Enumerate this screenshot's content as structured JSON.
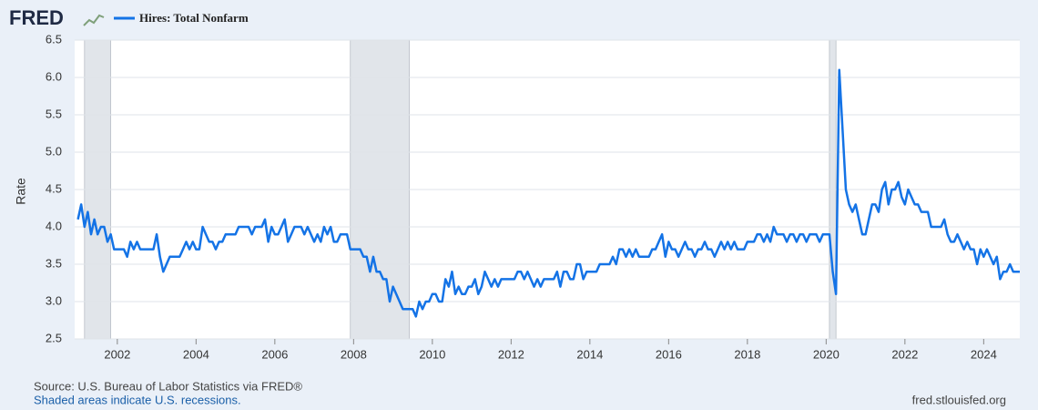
{
  "chart_data": {
    "type": "line",
    "logo": "FRED",
    "ylabel": "Rate",
    "source": "Source: U.S. Bureau of Labor Statistics via FRED®",
    "note": "Shaded areas indicate U.S. recessions.",
    "url": "fred.stlouisfed.org",
    "grid": true,
    "xlim": [
      2000.917,
      2024.917
    ],
    "ylim": [
      2.5,
      6.5
    ],
    "xticks": [
      2002,
      2004,
      2006,
      2008,
      2010,
      2012,
      2014,
      2016,
      2018,
      2020,
      2022,
      2024
    ],
    "yticks": [
      2.5,
      {
        "value": 3,
        "label": "3.0"
      },
      3.5,
      {
        "value": 4,
        "label": "4.0"
      },
      4.5,
      {
        "value": 5,
        "label": "5.0"
      },
      5.5,
      {
        "value": 6,
        "label": "6.0"
      },
      6.5
    ],
    "recessions": [
      [
        2001.167,
        2001.833
      ],
      [
        2007.917,
        2009.417
      ],
      [
        2020.083,
        2020.25
      ]
    ],
    "x": [
      2001,
      2001.083,
      2001.167,
      2001.25,
      2001.333,
      2001.417,
      2001.5,
      2001.583,
      2001.667,
      2001.75,
      2001.833,
      2001.917,
      2002,
      2002.083,
      2002.167,
      2002.25,
      2002.333,
      2002.417,
      2002.5,
      2002.583,
      2002.667,
      2002.75,
      2002.833,
      2002.917,
      2003,
      2003.083,
      2003.167,
      2003.25,
      2003.333,
      2003.417,
      2003.5,
      2003.583,
      2003.667,
      2003.75,
      2003.833,
      2003.917,
      2004,
      2004.083,
      2004.167,
      2004.25,
      2004.333,
      2004.417,
      2004.5,
      2004.583,
      2004.667,
      2004.75,
      2004.833,
      2004.917,
      2005,
      2005.083,
      2005.167,
      2005.25,
      2005.333,
      2005.417,
      2005.5,
      2005.583,
      2005.667,
      2005.75,
      2005.833,
      2005.917,
      2006,
      2006.083,
      2006.167,
      2006.25,
      2006.333,
      2006.417,
      2006.5,
      2006.583,
      2006.667,
      2006.75,
      2006.833,
      2006.917,
      2007,
      2007.083,
      2007.167,
      2007.25,
      2007.333,
      2007.417,
      2007.5,
      2007.583,
      2007.667,
      2007.75,
      2007.833,
      2007.917,
      2008,
      2008.083,
      2008.167,
      2008.25,
      2008.333,
      2008.417,
      2008.5,
      2008.583,
      2008.667,
      2008.75,
      2008.833,
      2008.917,
      2009,
      2009.083,
      2009.167,
      2009.25,
      2009.333,
      2009.417,
      2009.5,
      2009.583,
      2009.667,
      2009.75,
      2009.833,
      2009.917,
      2010,
      2010.083,
      2010.167,
      2010.25,
      2010.333,
      2010.417,
      2010.5,
      2010.583,
      2010.667,
      2010.75,
      2010.833,
      2010.917,
      2011,
      2011.083,
      2011.167,
      2011.25,
      2011.333,
      2011.417,
      2011.5,
      2011.583,
      2011.667,
      2011.75,
      2011.833,
      2011.917,
      2012,
      2012.083,
      2012.167,
      2012.25,
      2012.333,
      2012.417,
      2012.5,
      2012.583,
      2012.667,
      2012.75,
      2012.833,
      2012.917,
      2013,
      2013.083,
      2013.167,
      2013.25,
      2013.333,
      2013.417,
      2013.5,
      2013.583,
      2013.667,
      2013.75,
      2013.833,
      2013.917,
      2014,
      2014.083,
      2014.167,
      2014.25,
      2014.333,
      2014.417,
      2014.5,
      2014.583,
      2014.667,
      2014.75,
      2014.833,
      2014.917,
      2015,
      2015.083,
      2015.167,
      2015.25,
      2015.333,
      2015.417,
      2015.5,
      2015.583,
      2015.667,
      2015.75,
      2015.833,
      2015.917,
      2016,
      2016.083,
      2016.167,
      2016.25,
      2016.333,
      2016.417,
      2016.5,
      2016.583,
      2016.667,
      2016.75,
      2016.833,
      2016.917,
      2017,
      2017.083,
      2017.167,
      2017.25,
      2017.333,
      2017.417,
      2017.5,
      2017.583,
      2017.667,
      2017.75,
      2017.833,
      2017.917,
      2018,
      2018.083,
      2018.167,
      2018.25,
      2018.333,
      2018.417,
      2018.5,
      2018.583,
      2018.667,
      2018.75,
      2018.833,
      2018.917,
      2019,
      2019.083,
      2019.167,
      2019.25,
      2019.333,
      2019.417,
      2019.5,
      2019.583,
      2019.667,
      2019.75,
      2019.833,
      2019.917,
      2020,
      2020.083,
      2020.167,
      2020.25,
      2020.333,
      2020.417,
      2020.5,
      2020.583,
      2020.667,
      2020.75,
      2020.833,
      2020.917,
      2021,
      2021.083,
      2021.167,
      2021.25,
      2021.333,
      2021.417,
      2021.5,
      2021.583,
      2021.667,
      2021.75,
      2021.833,
      2021.917,
      2022,
      2022.083,
      2022.167,
      2022.25,
      2022.333,
      2022.417,
      2022.5,
      2022.583,
      2022.667,
      2022.75,
      2022.833,
      2022.917,
      2023,
      2023.083,
      2023.167,
      2023.25,
      2023.333,
      2023.417,
      2023.5,
      2023.583,
      2023.667,
      2023.75,
      2023.833,
      2023.917,
      2024,
      2024.083,
      2024.167,
      2024.25,
      2024.333,
      2024.417,
      2024.5,
      2024.583,
      2024.667,
      2024.75,
      2024.833,
      2024.917
    ],
    "series": [
      {
        "name": "Hires: Total Nonfarm",
        "color": "#1473e6",
        "values": [
          4.1,
          4.3,
          4.0,
          4.2,
          3.9,
          4.1,
          3.9,
          4.0,
          4.0,
          3.8,
          3.9,
          3.7,
          3.7,
          3.7,
          3.7,
          3.6,
          3.8,
          3.7,
          3.8,
          3.7,
          3.7,
          3.7,
          3.7,
          3.7,
          3.9,
          3.6,
          3.4,
          3.5,
          3.6,
          3.6,
          3.6,
          3.6,
          3.7,
          3.8,
          3.7,
          3.8,
          3.7,
          3.7,
          4.0,
          3.9,
          3.8,
          3.8,
          3.7,
          3.8,
          3.8,
          3.9,
          3.9,
          3.9,
          3.9,
          4.0,
          4.0,
          4.0,
          4.0,
          3.9,
          4.0,
          4.0,
          4.0,
          4.1,
          3.8,
          4.0,
          3.9,
          3.9,
          4.0,
          4.1,
          3.8,
          3.9,
          4.0,
          4.0,
          4.0,
          3.9,
          4.0,
          3.9,
          3.8,
          3.9,
          3.8,
          4.0,
          3.9,
          4.0,
          3.8,
          3.8,
          3.9,
          3.9,
          3.9,
          3.7,
          3.7,
          3.7,
          3.7,
          3.6,
          3.6,
          3.4,
          3.6,
          3.4,
          3.4,
          3.3,
          3.3,
          3.0,
          3.2,
          3.1,
          3.0,
          2.9,
          2.9,
          2.9,
          2.9,
          2.8,
          3.0,
          2.9,
          3.0,
          3.0,
          3.1,
          3.1,
          3.0,
          3.0,
          3.3,
          3.2,
          3.4,
          3.1,
          3.2,
          3.1,
          3.1,
          3.2,
          3.2,
          3.3,
          3.1,
          3.2,
          3.4,
          3.3,
          3.2,
          3.3,
          3.2,
          3.3,
          3.3,
          3.3,
          3.3,
          3.3,
          3.4,
          3.4,
          3.3,
          3.4,
          3.3,
          3.2,
          3.3,
          3.2,
          3.3,
          3.3,
          3.3,
          3.3,
          3.4,
          3.2,
          3.4,
          3.4,
          3.3,
          3.3,
          3.5,
          3.5,
          3.3,
          3.4,
          3.4,
          3.4,
          3.4,
          3.5,
          3.5,
          3.5,
          3.5,
          3.6,
          3.5,
          3.7,
          3.7,
          3.6,
          3.7,
          3.6,
          3.7,
          3.6,
          3.6,
          3.6,
          3.6,
          3.7,
          3.7,
          3.8,
          3.9,
          3.6,
          3.8,
          3.7,
          3.7,
          3.6,
          3.7,
          3.8,
          3.7,
          3.7,
          3.6,
          3.7,
          3.7,
          3.8,
          3.7,
          3.7,
          3.6,
          3.7,
          3.8,
          3.7,
          3.8,
          3.7,
          3.8,
          3.7,
          3.7,
          3.7,
          3.8,
          3.8,
          3.8,
          3.9,
          3.9,
          3.8,
          3.9,
          3.8,
          4.0,
          3.9,
          3.9,
          3.9,
          3.8,
          3.9,
          3.9,
          3.8,
          3.9,
          3.9,
          3.8,
          3.9,
          3.9,
          3.9,
          3.8,
          3.9,
          3.9,
          3.9,
          3.4,
          3.1,
          6.1,
          5.3,
          4.5,
          4.3,
          4.2,
          4.3,
          4.1,
          3.9,
          3.9,
          4.1,
          4.3,
          4.3,
          4.2,
          4.5,
          4.6,
          4.3,
          4.5,
          4.5,
          4.6,
          4.4,
          4.3,
          4.5,
          4.4,
          4.3,
          4.3,
          4.2,
          4.2,
          4.2,
          4.0,
          4.0,
          4.0,
          4.0,
          4.1,
          3.9,
          3.8,
          3.8,
          3.9,
          3.8,
          3.7,
          3.8,
          3.7,
          3.7,
          3.5,
          3.7,
          3.6,
          3.7,
          3.6,
          3.5,
          3.6,
          3.3,
          3.4,
          3.4,
          3.5,
          3.4,
          3.4,
          3.4
        ]
      }
    ]
  }
}
